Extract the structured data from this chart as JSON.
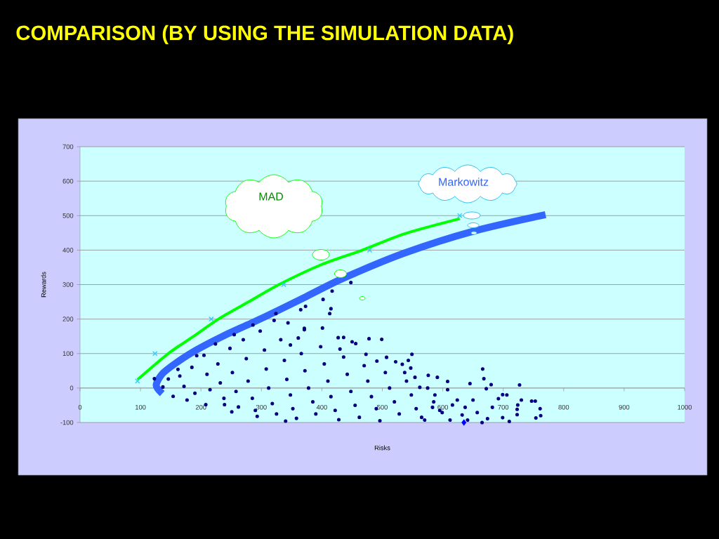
{
  "chart_data": {
    "type": "scatter",
    "title": "COMPARISON (BY USING THE SIMULATION DATA)",
    "xlabel": "Risks",
    "ylabel": "Rewards",
    "xlim": [
      0,
      1000
    ],
    "ylim": [
      -100,
      700
    ],
    "xticks": [
      0,
      100,
      200,
      300,
      400,
      500,
      600,
      700,
      800,
      900,
      1000
    ],
    "yticks": [
      -100,
      0,
      100,
      200,
      300,
      400,
      500,
      600,
      700
    ],
    "grid": "y",
    "series": [
      {
        "type": "scatter",
        "color": "#000080",
        "marker": "circle",
        "x": [
          165,
          172,
          185,
          190,
          205,
          210,
          215,
          228,
          232,
          238,
          248,
          252,
          258,
          262,
          270,
          275,
          278,
          285,
          290,
          298,
          305,
          308,
          312,
          318,
          325,
          332,
          338,
          342,
          348,
          352,
          358,
          366,
          372,
          378,
          385,
          390,
          398,
          404,
          410,
          415,
          422,
          428,
          436,
          442,
          448,
          455,
          462,
          470,
          476,
          482,
          490,
          496,
          505,
          512,
          520,
          528,
          540,
          548,
          556,
          565,
          575,
          585,
          595,
          154,
          177,
          208,
          239,
          251,
          293,
          340,
          123,
          137,
          324,
          344,
          371,
          361,
          348,
          321,
          286,
          255,
          224,
          193,
          162,
          146,
          448,
          417,
          402,
          373,
          365,
          415,
          413,
          371,
          401,
          427,
          436,
          478,
          499,
          450,
          456,
          430,
          473,
          549,
          507,
          491,
          522,
          533,
          543,
          547,
          666,
          668,
          591,
          576,
          608,
          645,
          680,
          727,
          672,
          747,
          753,
          761,
          762,
          754,
          730,
          724,
          723,
          723,
          710,
          699,
          706,
          699,
          692,
          682,
          674,
          665,
          657,
          650,
          637,
          632,
          641,
          624,
          608,
          616,
          599,
          612,
          587,
          583,
          570,
          562,
          554,
          537
        ],
        "values": [
          35,
          5,
          60,
          -15,
          95,
          40,
          -5,
          70,
          15,
          -30,
          115,
          45,
          -10,
          -55,
          140,
          85,
          20,
          -30,
          -65,
          165,
          110,
          55,
          0,
          -45,
          -75,
          140,
          80,
          25,
          -20,
          -60,
          -88,
          100,
          50,
          0,
          -40,
          -75,
          120,
          70,
          20,
          -25,
          -65,
          -92,
          90,
          40,
          -10,
          -50,
          -85,
          65,
          20,
          -25,
          -60,
          -95,
          45,
          0,
          -40,
          -75,
          20,
          -20,
          -60,
          -85,
          0,
          -40,
          -65,
          -24,
          -35,
          -48,
          -48,
          -69,
          -82,
          -96,
          27,
          3,
          216,
          189,
          169,
          145,
          125,
          196,
          183,
          155,
          128,
          94,
          54,
          26,
          306,
          281,
          257,
          237,
          227,
          230,
          216,
          173,
          174,
          146,
          147,
          143,
          141,
          134,
          129,
          113,
          98,
          98,
          89,
          78,
          76,
          69,
          80,
          58,
          55,
          27,
          31,
          37,
          19,
          13,
          10,
          9,
          -2,
          -38,
          -38,
          -60,
          -80,
          -87,
          -35,
          -49,
          -62,
          -77,
          -97,
          -86,
          -20,
          -19,
          -31,
          -56,
          -89,
          -100,
          -71,
          -35,
          -56,
          -78,
          -93,
          -35,
          -5,
          -49,
          -71,
          -93,
          -20,
          -56,
          -93,
          2,
          31,
          45
        ]
      },
      {
        "type": "scatter",
        "color": "#0000ff",
        "marker": "diamond",
        "x": [
          635
        ],
        "values": [
          -100
        ]
      },
      {
        "type": "line",
        "name": "Markowitz",
        "color": "#3366ff",
        "marker": "none",
        "x": [
          136,
          126,
          136,
          159,
          191,
          237,
          283,
          329,
          375,
          435,
          536,
          651,
          770
        ],
        "values": [
          -16,
          8,
          41,
          73,
          109,
          151,
          188,
          226,
          266,
          318,
          391,
          455,
          503
        ]
      },
      {
        "type": "line",
        "name": "MAD",
        "color": "#00ff00",
        "marker": "none",
        "x": [
          95,
          146,
          187,
          229,
          279,
          329,
          398,
          467,
          536,
          628
        ],
        "values": [
          24,
          100,
          149,
          200,
          250,
          300,
          357,
          400,
          447,
          491
        ]
      },
      {
        "type": "scatter",
        "color": "#33ccff",
        "marker": "cross",
        "x": [
          95,
          124,
          217,
          337,
          479,
          628
        ],
        "values": [
          20,
          100,
          200,
          300,
          400,
          500
        ]
      }
    ]
  }
}
